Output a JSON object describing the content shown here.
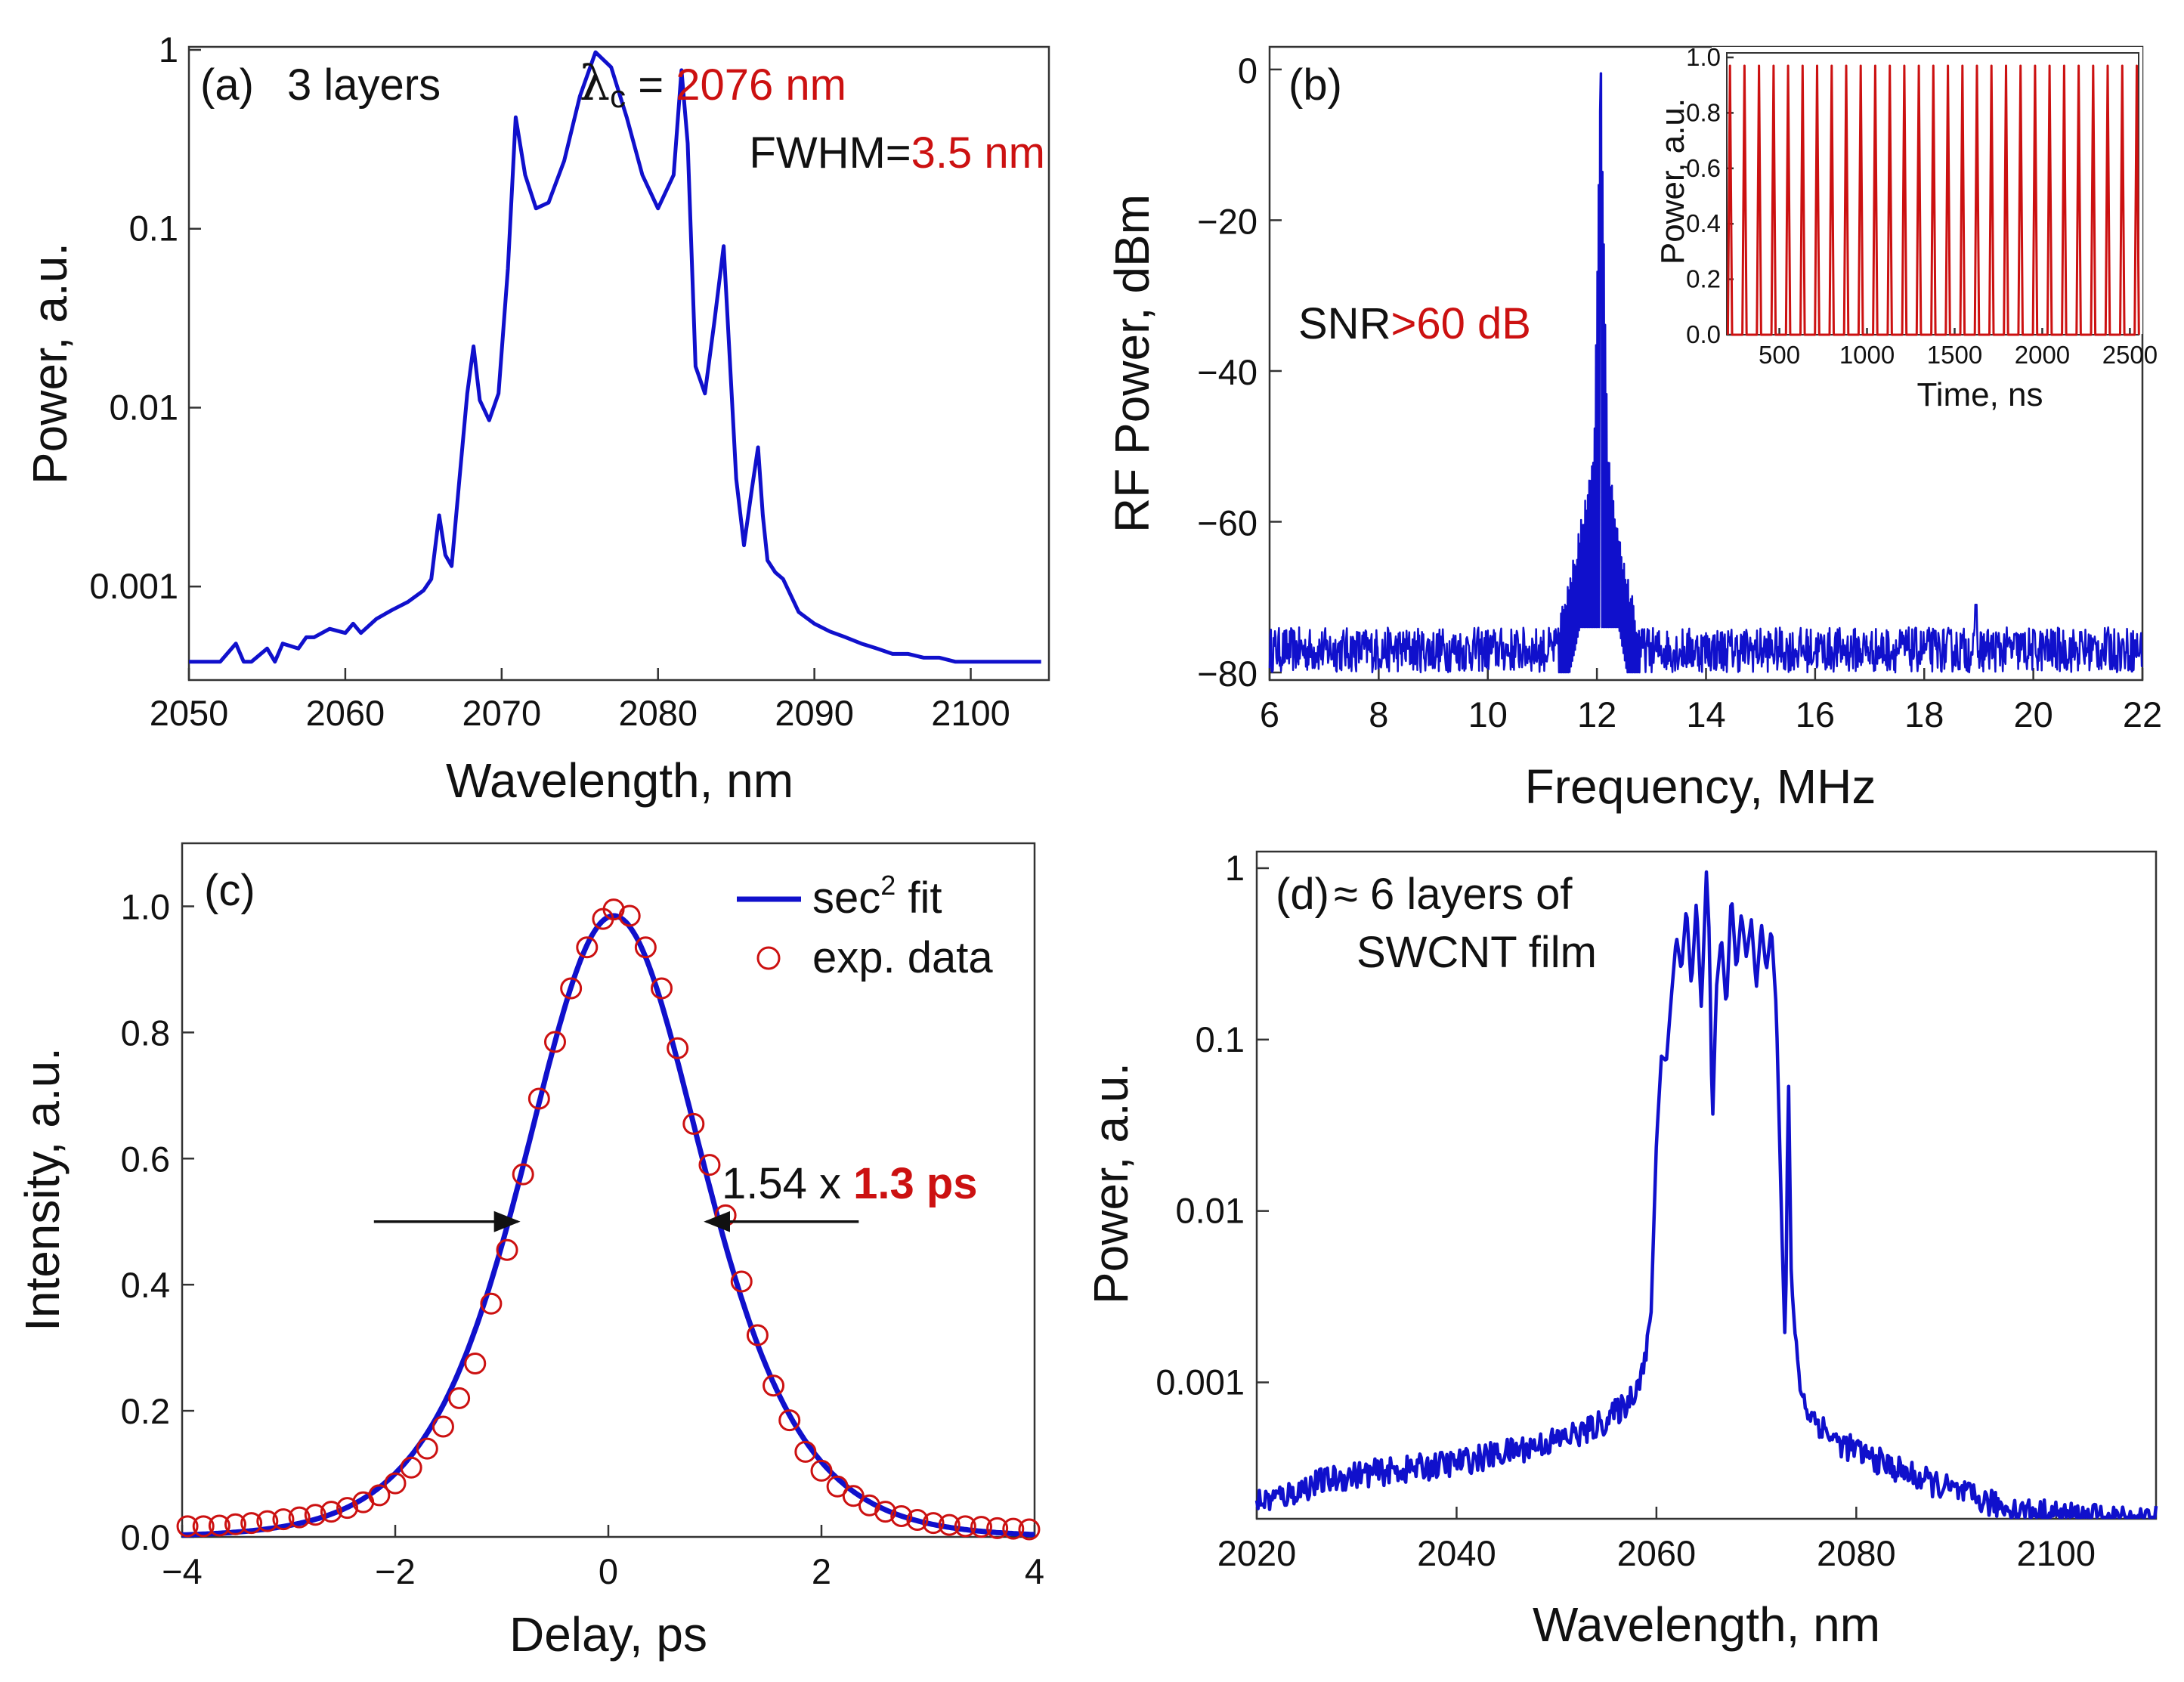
{
  "colors": {
    "blue": "#1010cc",
    "red": "#cc1111",
    "axis": "#333333",
    "text": "#111111"
  },
  "chart_data": [
    {
      "id": "a",
      "type": "line",
      "scale_y": "log",
      "panel_label": "(a)",
      "caption": "3 layers",
      "annotation": {
        "lc_symbol": "λ",
        "lc_sub": "c",
        "lc_eq": " = ",
        "lc_value": "2076 nm",
        "fwhm_label": "FWHM=",
        "fwhm_value": "3.5 nm"
      },
      "xlabel": "Wavelength, nm",
      "ylabel": "Power, a.u.",
      "xlim": [
        2050,
        2105
      ],
      "ylim": [
        0.0003,
        1.0
      ],
      "xticks": [
        2050,
        2060,
        2070,
        2080,
        2090,
        2100
      ],
      "xtick_labels": [
        "2050",
        "2060",
        "2070",
        "2080",
        "2090",
        "2100"
      ],
      "yticks": [
        0.001,
        0.01,
        0.1,
        1
      ],
      "ytick_labels": [
        "0.001",
        "0.01",
        "0.1",
        "1"
      ],
      "series": [
        {
          "name": "spectrum (3 layers)",
          "color": "blue",
          "x": [
            2050,
            2052,
            2053,
            2053.5,
            2054,
            2055,
            2055.5,
            2056,
            2057,
            2057.5,
            2058,
            2059,
            2060,
            2060.5,
            2061,
            2062,
            2063,
            2064,
            2065,
            2065.5,
            2066,
            2066.4,
            2066.8,
            2067.3,
            2067.8,
            2068.2,
            2068.6,
            2069.2,
            2069.8,
            2070.4,
            2070.9,
            2071.5,
            2072.2,
            2073,
            2074,
            2075,
            2076,
            2077,
            2078,
            2079,
            2080,
            2081,
            2081.5,
            2081.9,
            2082.4,
            2083,
            2083.6,
            2084.2,
            2084.6,
            2085,
            2085.5,
            2086,
            2086.4,
            2086.7,
            2087,
            2087.5,
            2088,
            2089,
            2090,
            2091,
            2092,
            2093,
            2094,
            2095,
            2096,
            2097,
            2098,
            2099,
            2100,
            2101,
            2102,
            2103,
            2104,
            2104.5
          ],
          "y": [
            0.00038,
            0.00038,
            0.00048,
            0.00038,
            0.00038,
            0.00045,
            0.00038,
            0.00048,
            0.00045,
            0.00052,
            0.00052,
            0.00058,
            0.00055,
            0.00062,
            0.00055,
            0.00066,
            0.00074,
            0.00082,
            0.00095,
            0.0011,
            0.0025,
            0.0015,
            0.0013,
            0.004,
            0.012,
            0.022,
            0.011,
            0.0085,
            0.012,
            0.06,
            0.42,
            0.2,
            0.13,
            0.14,
            0.24,
            0.55,
            0.97,
            0.8,
            0.42,
            0.2,
            0.13,
            0.2,
            0.77,
            0.3,
            0.017,
            0.012,
            0.03,
            0.08,
            0.018,
            0.004,
            0.0017,
            0.0035,
            0.006,
            0.0025,
            0.0014,
            0.0012,
            0.0011,
            0.00072,
            0.00062,
            0.00056,
            0.00052,
            0.00048,
            0.00045,
            0.00042,
            0.00042,
            0.0004,
            0.0004,
            0.00038,
            0.00038,
            0.00038,
            0.00038,
            0.00038,
            0.00038,
            0.00038
          ]
        }
      ]
    },
    {
      "id": "b",
      "type": "line",
      "panel_label": "(b)",
      "annotation": {
        "snr_label": "SNR",
        "snr_value": ">60 dB"
      },
      "xlabel": "Frequency, MHz",
      "ylabel": "RF Power, dBm",
      "xlim": [
        6,
        22
      ],
      "ylim": [
        -80,
        3
      ],
      "xticks": [
        6,
        8,
        10,
        12,
        14,
        16,
        18,
        20,
        22
      ],
      "xtick_labels": [
        "6",
        "8",
        "10",
        "12",
        "14",
        "16",
        "18",
        "20",
        "22"
      ],
      "yticks": [
        0,
        -20,
        -40,
        -60,
        -80
      ],
      "ytick_labels": [
        "0",
        "−20",
        "−40",
        "−60",
        "−80"
      ],
      "series": [
        {
          "name": "RF spectrum",
          "color": "blue",
          "noise_floor_dbm": -77,
          "peak_frequency_mhz": 12.07,
          "peak_dbm": -0.5,
          "pedestal": {
            "x": [
              11.3,
              11.6,
              11.8,
              11.95,
              12.07,
              12.2,
              12.35,
              12.55,
              12.8
            ],
            "y": [
              -74,
              -65,
              -58,
              -50,
              -0.5,
              -52,
              -60,
              -68,
              -76
            ]
          }
        }
      ],
      "inset": {
        "type": "line",
        "xlabel": "Time, ns",
        "ylabel": "Power, a.u.",
        "xlim": [
          200,
          2550
        ],
        "ylim": [
          0,
          1.0
        ],
        "xticks": [
          500,
          1000,
          1500,
          2000,
          2500
        ],
        "xtick_labels": [
          "500",
          "1000",
          "1500",
          "2000",
          "2500"
        ],
        "yticks": [
          0.0,
          0.2,
          0.4,
          0.6,
          0.8,
          1.0
        ],
        "ytick_labels": [
          "0.0",
          "0.2",
          "0.4",
          "0.6",
          "0.8",
          "1.0"
        ],
        "pulse_period_ns": 82.9,
        "pulse_peak": 0.97,
        "color": "red"
      }
    },
    {
      "id": "c",
      "type": "scatter+line",
      "panel_label": "(c)",
      "xlabel": "Delay, ps",
      "ylabel": "Intensity, a.u.",
      "xlim": [
        -4,
        4
      ],
      "ylim": [
        0,
        1.1
      ],
      "xticks": [
        -4,
        -2,
        0,
        2,
        4
      ],
      "xtick_labels": [
        "−4",
        "−2",
        "0",
        "2",
        "4"
      ],
      "yticks": [
        0.0,
        0.2,
        0.4,
        0.6,
        0.8,
        1.0
      ],
      "ytick_labels": [
        "0.0",
        "0.2",
        "0.4",
        "0.6",
        "0.8",
        "1.0"
      ],
      "annotation": {
        "factor": "1.54 x ",
        "duration": "1.3 ps",
        "arrow_left_from": -2.2,
        "arrow_left_to": -0.85,
        "arrow_right_from": 2.35,
        "arrow_right_to": 0.92,
        "arrow_y": 0.5
      },
      "legend": {
        "placement": "top-right",
        "fit_pre": "sec",
        "fit_sup": "2",
        "fit_post": " fit",
        "data": "exp. data"
      },
      "series": [
        {
          "name": "sec2 fit",
          "color": "blue",
          "center_ps": 0.05,
          "fwhm_ps": 2.0,
          "amplitude": 0.985
        },
        {
          "name": "exp. data",
          "color": "red",
          "x": [
            -3.95,
            -3.8,
            -3.65,
            -3.5,
            -3.35,
            -3.2,
            -3.05,
            -2.9,
            -2.75,
            -2.6,
            -2.45,
            -2.3,
            -2.15,
            -2.0,
            -1.85,
            -1.7,
            -1.55,
            -1.4,
            -1.25,
            -1.1,
            -0.95,
            -0.8,
            -0.65,
            -0.5,
            -0.35,
            -0.2,
            -0.05,
            0.05,
            0.2,
            0.35,
            0.5,
            0.65,
            0.8,
            0.95,
            1.1,
            1.25,
            1.4,
            1.55,
            1.7,
            1.85,
            2.0,
            2.15,
            2.3,
            2.45,
            2.6,
            2.75,
            2.9,
            3.05,
            3.2,
            3.35,
            3.5,
            3.65,
            3.8,
            3.95
          ],
          "y": [
            0.017,
            0.017,
            0.018,
            0.02,
            0.022,
            0.025,
            0.028,
            0.031,
            0.035,
            0.04,
            0.046,
            0.055,
            0.066,
            0.085,
            0.11,
            0.14,
            0.175,
            0.22,
            0.275,
            0.37,
            0.455,
            0.575,
            0.695,
            0.785,
            0.87,
            0.935,
            0.98,
            0.995,
            0.985,
            0.935,
            0.87,
            0.775,
            0.655,
            0.59,
            0.51,
            0.405,
            0.32,
            0.24,
            0.185,
            0.135,
            0.105,
            0.08,
            0.065,
            0.05,
            0.04,
            0.033,
            0.027,
            0.022,
            0.019,
            0.017,
            0.016,
            0.014,
            0.013,
            0.012
          ]
        }
      ]
    },
    {
      "id": "d",
      "type": "line",
      "scale_y": "log",
      "panel_label": "(d)",
      "caption_line1": "≈ 6 layers of",
      "caption_line2": "SWCNT film",
      "xlabel": "Wavelength, nm",
      "ylabel": "Power, a.u.",
      "xlim": [
        2020,
        2110
      ],
      "ylim": [
        0.00016,
        1.25
      ],
      "xticks": [
        2020,
        2040,
        2060,
        2080,
        2100
      ],
      "xtick_labels": [
        "2020",
        "2040",
        "2060",
        "2080",
        "2100"
      ],
      "yticks": [
        0.001,
        0.01,
        0.1,
        1
      ],
      "ytick_labels": [
        "0.001",
        "0.01",
        "0.1",
        "1"
      ],
      "series": [
        {
          "name": "spectrum (~6 layers)",
          "color": "blue",
          "x": [
            2020,
            2023,
            2026,
            2030,
            2035,
            2040,
            2045,
            2050,
            2053,
            2055,
            2057,
            2058,
            2059,
            2059.5,
            2060,
            2060.5,
            2061,
            2061.5,
            2062,
            2062.5,
            2063,
            2063.5,
            2064,
            2064.5,
            2065,
            2065.3,
            2065.6,
            2066,
            2066.5,
            2067,
            2067.5,
            2068,
            2068.5,
            2069,
            2069.5,
            2070,
            2070.5,
            2071,
            2071.5,
            2072,
            2072.3,
            2072.6,
            2072.9,
            2073.2,
            2073.5,
            2074,
            2074.5,
            2075,
            2076,
            2078,
            2080,
            2083,
            2086,
            2090,
            2093,
            2096,
            2100,
            2105,
            2110
          ],
          "y": [
            0.0002,
            0.00022,
            0.00026,
            0.00029,
            0.00031,
            0.00034,
            0.00039,
            0.00046,
            0.00052,
            0.0006,
            0.00075,
            0.00095,
            0.0014,
            0.003,
            0.025,
            0.08,
            0.075,
            0.18,
            0.4,
            0.25,
            0.6,
            0.2,
            0.65,
            0.15,
            0.95,
            0.4,
            0.03,
            0.2,
            0.4,
            0.15,
            0.72,
            0.25,
            0.55,
            0.3,
            0.5,
            0.2,
            0.48,
            0.25,
            0.45,
            0.15,
            0.03,
            0.006,
            0.0015,
            0.07,
            0.004,
            0.0015,
            0.0009,
            0.0007,
            0.0006,
            0.00045,
            0.0004,
            0.00033,
            0.00028,
            0.00023,
            0.0002,
            0.00018,
            0.00017,
            0.00016,
            0.00016
          ]
        }
      ]
    }
  ]
}
